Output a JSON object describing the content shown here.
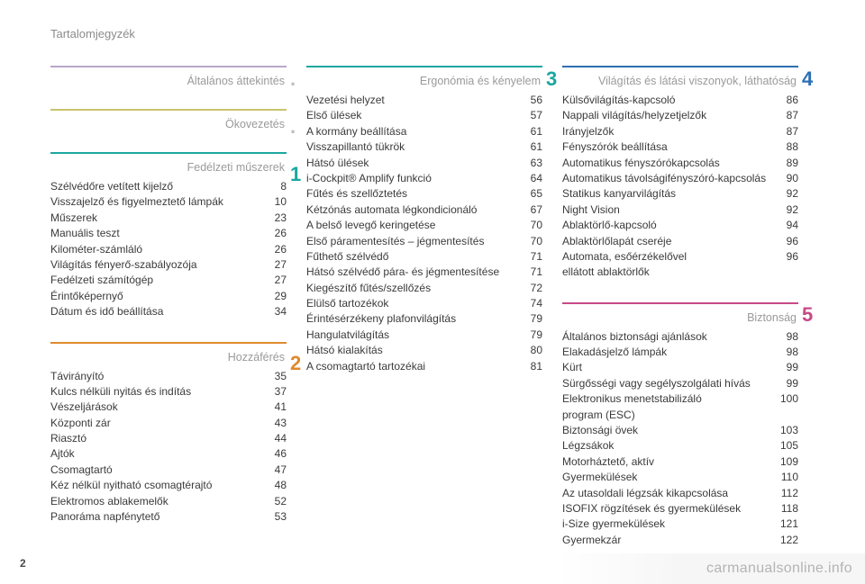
{
  "header": {
    "title": "Tartalomjegyzék"
  },
  "page_number": "2",
  "watermark": "carmanualsonline.info",
  "section_number_colors": {
    "s1": "#1aa7a0",
    "s2": "#e08a2e",
    "s3": "#1aa7a0",
    "s4": "#2d6fb3",
    "s5": "#c64a87"
  },
  "columns": [
    {
      "sections": [
        {
          "heading": "Általános áttekintés",
          "rule_color": "#b9a6c9",
          "num_display": ".",
          "num_color": "#bdbdbd",
          "items": []
        },
        {
          "heading": "Ökovezetés",
          "rule_color": "#c9c56a",
          "num_display": ".",
          "num_color": "#bdbdbd",
          "items": []
        },
        {
          "heading": "Fedélzeti műszerek",
          "rule_color": "#1aa7a0",
          "num_display": "1",
          "num_color": "#1aa7a0",
          "items": [
            {
              "label": "Szélvédőre vetített kijelző",
              "page": "8"
            },
            {
              "label": "Visszajelző és figyelmeztető lámpák",
              "page": "10"
            },
            {
              "label": "Műszerek",
              "page": "23"
            },
            {
              "label": "Manuális teszt",
              "page": "26"
            },
            {
              "label": "Kilométer-számláló",
              "page": "26"
            },
            {
              "label": "Világítás fényerő-szabályozója",
              "page": "27"
            },
            {
              "label": "Fedélzeti számítógép",
              "page": "27"
            },
            {
              "label": "Érintőképernyő",
              "page": "29"
            },
            {
              "label": "Dátum és idő beállítása",
              "page": "34"
            }
          ]
        },
        {
          "heading": "Hozzáférés",
          "rule_color": "#e08a2e",
          "num_display": "2",
          "num_color": "#e08a2e",
          "items": [
            {
              "label": "Távirányító",
              "page": "35"
            },
            {
              "label": "Kulcs nélküli nyitás és indítás",
              "page": "37"
            },
            {
              "label": "Vészeljárások",
              "page": "41"
            },
            {
              "label": "Központi zár",
              "page": "43"
            },
            {
              "label": "Riasztó",
              "page": "44"
            },
            {
              "label": "Ajtók",
              "page": "46"
            },
            {
              "label": "Csomagtartó",
              "page": "47"
            },
            {
              "label": "Kéz nélkül nyitható csomagtérajtó",
              "page": "48"
            },
            {
              "label": "Elektromos ablakemelők",
              "page": "52"
            },
            {
              "label": "Panoráma napfénytető",
              "page": "53"
            }
          ]
        }
      ]
    },
    {
      "sections": [
        {
          "heading": "Ergonómia és kényelem",
          "rule_color": "#1aa7a0",
          "num_display": "3",
          "num_color": "#1aa7a0",
          "items": [
            {
              "label": "Vezetési helyzet",
              "page": "56"
            },
            {
              "label": "Első ülések",
              "page": "57"
            },
            {
              "label": "A kormány beállítása",
              "page": "61"
            },
            {
              "label": "Visszapillantó tükrök",
              "page": "61"
            },
            {
              "label": "Hátsó ülések",
              "page": "63"
            },
            {
              "label": "i-Cockpit® Amplify funkció",
              "page": "64"
            },
            {
              "label": "Fűtés és szellőztetés",
              "page": "65"
            },
            {
              "label": "Kétzónás automata légkondicionáló",
              "page": "67"
            },
            {
              "label": "A belső levegő keringetése",
              "page": "70"
            },
            {
              "label": "Első páramentesítés – jégmentesítés",
              "page": "70"
            },
            {
              "label": "Fűthető szélvédő",
              "page": "71"
            },
            {
              "label": "Hátsó szélvédő pára- és jégmentesítése",
              "page": "71"
            },
            {
              "label": "Kiegészítő fűtés/szellőzés",
              "page": "72"
            },
            {
              "label": "Elülső tartozékok",
              "page": "74"
            },
            {
              "label": "Érintésérzékeny plafonvilágítás",
              "page": "79"
            },
            {
              "label": "Hangulatvilágítás",
              "page": "79"
            },
            {
              "label": "Hátsó kialakítás",
              "page": "80"
            },
            {
              "label": "A csomagtartó tartozékai",
              "page": "81"
            }
          ]
        }
      ]
    },
    {
      "sections": [
        {
          "heading": "Világítás és látási viszonyok, láthatóság",
          "rule_color": "#2d6fb3",
          "num_display": "4",
          "num_color": "#2d6fb3",
          "items": [
            {
              "label": "Külsővilágítás-kapcsoló",
              "page": "86"
            },
            {
              "label": "Nappali világítás/helyzetjelzők",
              "page": "87"
            },
            {
              "label": "Irányjelzők",
              "page": "87"
            },
            {
              "label": "Fényszórók beállítása",
              "page": "88"
            },
            {
              "label": "Automatikus fényszórókapcsolás",
              "page": "89"
            },
            {
              "label": "Automatikus távolságifényszóró-kapcsolás",
              "page": "90"
            },
            {
              "label": "Statikus kanyarvilágítás",
              "page": "92"
            },
            {
              "label": "Night Vision",
              "page": "92"
            },
            {
              "label": "Ablaktörlő-kapcsoló",
              "page": "94"
            },
            {
              "label": "Ablaktörlőlapát cseréje",
              "page": "96"
            },
            {
              "label": "Automata, esőérzékelővel\nellátott ablaktörlők",
              "page": "96"
            }
          ]
        },
        {
          "heading": "Biztonság",
          "rule_color": "#c64a87",
          "num_display": "5",
          "num_color": "#c64a87",
          "items": [
            {
              "label": "Általános biztonsági ajánlások",
              "page": "98"
            },
            {
              "label": "Elakadásjelző lámpák",
              "page": "98"
            },
            {
              "label": "Kürt",
              "page": "99"
            },
            {
              "label": "Sürgősségi vagy segélyszolgálati hívás",
              "page": "99"
            },
            {
              "label": "Elektronikus menetstabilizáló\nprogram (ESC)",
              "page": "100"
            },
            {
              "label": "Biztonsági övek",
              "page": "103"
            },
            {
              "label": "Légzsákok",
              "page": "105"
            },
            {
              "label": "Motorháztető, aktív",
              "page": "109"
            },
            {
              "label": "Gyermekülések",
              "page": "110"
            },
            {
              "label": "Az utasoldali légzsák kikapcsolása",
              "page": "112"
            },
            {
              "label": "ISOFIX rögzítések és gyermekülések",
              "page": "118"
            },
            {
              "label": "i-Size gyermekülések",
              "page": "121"
            },
            {
              "label": "Gyermekzár",
              "page": "122"
            }
          ]
        }
      ]
    }
  ]
}
